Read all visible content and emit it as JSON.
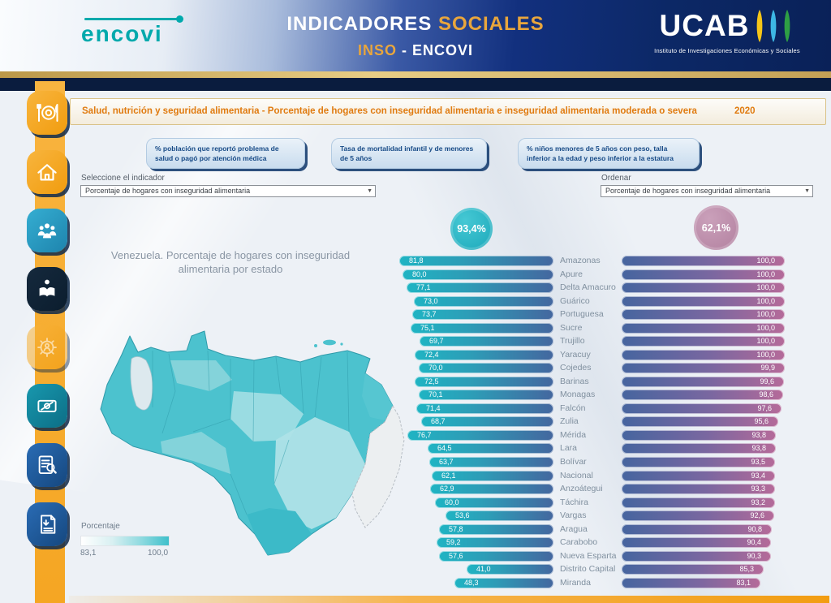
{
  "header": {
    "brand": "encovi",
    "title_part1": "INDICADORES",
    "title_part2": "SOCIALES",
    "subtitle_part1": "INSO",
    "subtitle_part2": "- ENCOVI",
    "ucab": "UCAB",
    "ucab_subtitle": "Instituto de Investigaciones Económicas y Sociales"
  },
  "titlebar": {
    "text": "Salud, nutrición y seguridad alimentaria - Porcentaje de hogares con inseguridad alimentaria e inseguridad alimentaria moderada o severa",
    "year": "2020"
  },
  "tabs": [
    {
      "label": "% población que reportó problema de salud o pagó por atención médica"
    },
    {
      "label": "Tasa de mortalidad infantil y de menores de 5 años"
    },
    {
      "label": "% niños menores de 5 años con peso, talla inferior a la edad y peso inferior a la estatura"
    }
  ],
  "filters": {
    "indicator_label": "Seleccione el indicador",
    "indicator_value": "Porcentaje de hogares con inseguridad alimentaria",
    "order_label": "Ordenar",
    "order_value": "Porcentaje de hogares con inseguridad alimentaria"
  },
  "summary": {
    "left_value": "93,4%",
    "right_value": "62,1%"
  },
  "map": {
    "title_line1": "Venezuela. Porcentaje de hogares con inseguridad",
    "title_line2": "alimentaria por estado",
    "legend_label": "Porcentaje",
    "legend_min": "83,1",
    "legend_max": "100,0"
  },
  "sidebar": {
    "icons": [
      "meal-plate",
      "home",
      "people-group",
      "person-reading",
      "gear-user",
      "screen-edit",
      "document-search",
      "document-download"
    ]
  },
  "chart_data": {
    "type": "bar",
    "orientation": "horizontal",
    "categories": [
      "Amazonas",
      "Apure",
      "Delta Amacuro",
      "Guárico",
      "Portuguesa",
      "Sucre",
      "Trujillo",
      "Yaracuy",
      "Cojedes",
      "Barinas",
      "Monagas",
      "Falcón",
      "Zulia",
      "Mérida",
      "Lara",
      "Bolívar",
      "Nacional",
      "Anzoátegui",
      "Táchira",
      "Vargas",
      "Aragua",
      "Carabobo",
      "Nueva Esparta",
      "Distrito Capital",
      "Miranda"
    ],
    "series": [
      {
        "name": "left_bars",
        "values": [
          81.8,
          80.0,
          77.1,
          73.0,
          73.7,
          75.1,
          69.7,
          72.4,
          70.0,
          72.5,
          70.1,
          71.4,
          68.7,
          76.7,
          64.5,
          63.7,
          62.1,
          62.9,
          60.0,
          53.6,
          57.8,
          59.2,
          57.6,
          41.0,
          48.3
        ]
      },
      {
        "name": "right_bars",
        "values": [
          100.0,
          100.0,
          100.0,
          100.0,
          100.0,
          100.0,
          100.0,
          100.0,
          99.9,
          99.6,
          98.6,
          97.6,
          95.6,
          93.8,
          93.8,
          93.5,
          93.4,
          93.3,
          93.2,
          92.6,
          90.8,
          90.4,
          90.3,
          85.3,
          83.1
        ]
      }
    ],
    "value_format": "decimal-comma",
    "sorted_by": "right_bars descending",
    "legend_position": "none",
    "grid": false
  },
  "colors": {
    "header_navy": "#0c2866",
    "gold": "#d9b35c",
    "sidebar_orange": "#f5a623",
    "brand_teal": "#00a9ac",
    "bubble_teal": "#29b7c4",
    "bubble_pink": "#b2809f",
    "bar_left_start": "#1fb4c3",
    "bar_left_end": "#44679f",
    "bar_right_start": "#46659f",
    "bar_right_end": "#b56a99",
    "titlebar_orange": "#e07b10",
    "tab_text_blue": "#174a86",
    "map_teal": "#4cc2ce"
  }
}
